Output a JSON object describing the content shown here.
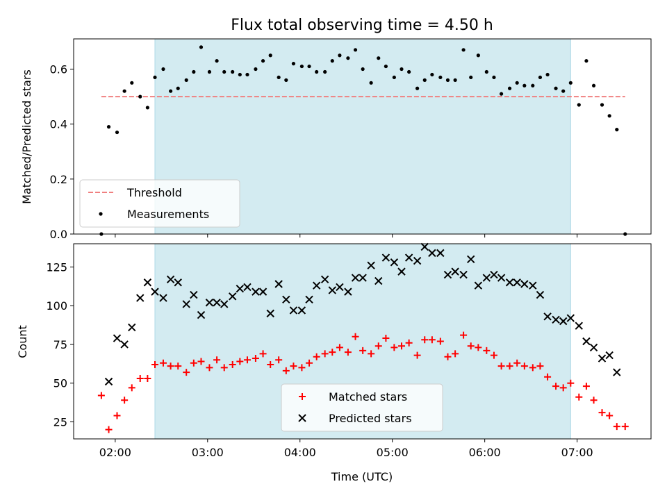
{
  "chart_data": {
    "type": "scatter",
    "title": "Flux total observing time = 4.50 h",
    "xlabel": "Time (UTC)",
    "x_ticks": [
      "02:00",
      "03:00",
      "04:00",
      "05:00",
      "06:00",
      "07:00"
    ],
    "xlim": [
      1.55,
      7.8
    ],
    "observing_window": {
      "start": 2.43,
      "end": 6.93,
      "color": "#d3ebf1"
    },
    "panels": [
      {
        "ylabel": "Matched/Predicted stars",
        "ylim": [
          0,
          0.71
        ],
        "y_ticks": [
          0,
          0.2,
          0.4,
          0.6
        ],
        "y_tick_labels": [
          "0.0",
          "0.2",
          "0.4",
          "0.6"
        ],
        "legend_position": "lower-left",
        "threshold": {
          "name": "Threshold",
          "value": 0.5,
          "x_range": [
            1.85,
            7.52
          ],
          "color": "#f08080"
        },
        "series": [
          {
            "name": "Measurements",
            "marker": "dot",
            "color": "#000000",
            "points": [
              [
                1.85,
                0.0
              ],
              [
                1.93,
                0.39
              ],
              [
                2.02,
                0.37
              ],
              [
                2.1,
                0.52
              ],
              [
                2.18,
                0.55
              ],
              [
                2.27,
                0.5
              ],
              [
                2.35,
                0.46
              ],
              [
                2.43,
                0.57
              ],
              [
                2.52,
                0.6
              ],
              [
                2.6,
                0.52
              ],
              [
                2.68,
                0.53
              ],
              [
                2.77,
                0.56
              ],
              [
                2.85,
                0.59
              ],
              [
                2.93,
                0.68
              ],
              [
                3.02,
                0.59
              ],
              [
                3.1,
                0.63
              ],
              [
                3.18,
                0.59
              ],
              [
                3.27,
                0.59
              ],
              [
                3.35,
                0.58
              ],
              [
                3.43,
                0.58
              ],
              [
                3.52,
                0.6
              ],
              [
                3.6,
                0.63
              ],
              [
                3.68,
                0.65
              ],
              [
                3.77,
                0.57
              ],
              [
                3.85,
                0.56
              ],
              [
                3.93,
                0.62
              ],
              [
                4.02,
                0.61
              ],
              [
                4.1,
                0.61
              ],
              [
                4.18,
                0.59
              ],
              [
                4.27,
                0.59
              ],
              [
                4.35,
                0.63
              ],
              [
                4.43,
                0.65
              ],
              [
                4.52,
                0.64
              ],
              [
                4.6,
                0.67
              ],
              [
                4.68,
                0.6
              ],
              [
                4.77,
                0.55
              ],
              [
                4.85,
                0.64
              ],
              [
                4.93,
                0.61
              ],
              [
                5.02,
                0.57
              ],
              [
                5.1,
                0.6
              ],
              [
                5.18,
                0.59
              ],
              [
                5.27,
                0.53
              ],
              [
                5.35,
                0.56
              ],
              [
                5.43,
                0.58
              ],
              [
                5.52,
                0.57
              ],
              [
                5.6,
                0.56
              ],
              [
                5.68,
                0.56
              ],
              [
                5.77,
                0.67
              ],
              [
                5.85,
                0.57
              ],
              [
                5.93,
                0.65
              ],
              [
                6.02,
                0.59
              ],
              [
                6.1,
                0.57
              ],
              [
                6.18,
                0.51
              ],
              [
                6.27,
                0.53
              ],
              [
                6.35,
                0.55
              ],
              [
                6.43,
                0.54
              ],
              [
                6.52,
                0.54
              ],
              [
                6.6,
                0.57
              ],
              [
                6.68,
                0.58
              ],
              [
                6.77,
                0.53
              ],
              [
                6.85,
                0.52
              ],
              [
                6.93,
                0.55
              ],
              [
                7.02,
                0.47
              ],
              [
                7.1,
                0.63
              ],
              [
                7.18,
                0.54
              ],
              [
                7.27,
                0.47
              ],
              [
                7.35,
                0.43
              ],
              [
                7.43,
                0.38
              ],
              [
                7.52,
                0.0
              ]
            ]
          }
        ]
      },
      {
        "ylabel": "Count",
        "ylim": [
          14,
          140
        ],
        "y_ticks": [
          25,
          50,
          75,
          100,
          125
        ],
        "y_tick_labels": [
          "25",
          "50",
          "75",
          "100",
          "125"
        ],
        "legend_position": "lower-center",
        "series": [
          {
            "name": "Matched stars",
            "marker": "plus",
            "color": "#ff0000",
            "points": [
              [
                1.85,
                42
              ],
              [
                1.93,
                20
              ],
              [
                2.02,
                29
              ],
              [
                2.1,
                39
              ],
              [
                2.18,
                47
              ],
              [
                2.27,
                53
              ],
              [
                2.35,
                53
              ],
              [
                2.43,
                62
              ],
              [
                2.52,
                63
              ],
              [
                2.6,
                61
              ],
              [
                2.68,
                61
              ],
              [
                2.77,
                57
              ],
              [
                2.85,
                63
              ],
              [
                2.93,
                64
              ],
              [
                3.02,
                60
              ],
              [
                3.1,
                65
              ],
              [
                3.18,
                60
              ],
              [
                3.27,
                62
              ],
              [
                3.35,
                64
              ],
              [
                3.43,
                65
              ],
              [
                3.52,
                66
              ],
              [
                3.6,
                69
              ],
              [
                3.68,
                62
              ],
              [
                3.77,
                65
              ],
              [
                3.85,
                58
              ],
              [
                3.93,
                61
              ],
              [
                4.02,
                60
              ],
              [
                4.1,
                63
              ],
              [
                4.18,
                67
              ],
              [
                4.27,
                69
              ],
              [
                4.35,
                70
              ],
              [
                4.43,
                73
              ],
              [
                4.52,
                70
              ],
              [
                4.6,
                80
              ],
              [
                4.68,
                71
              ],
              [
                4.77,
                69
              ],
              [
                4.85,
                74
              ],
              [
                4.93,
                79
              ],
              [
                5.02,
                73
              ],
              [
                5.1,
                74
              ],
              [
                5.18,
                76
              ],
              [
                5.27,
                68
              ],
              [
                5.35,
                78
              ],
              [
                5.43,
                78
              ],
              [
                5.52,
                77
              ],
              [
                5.6,
                67
              ],
              [
                5.68,
                69
              ],
              [
                5.77,
                81
              ],
              [
                5.85,
                74
              ],
              [
                5.93,
                73
              ],
              [
                6.02,
                71
              ],
              [
                6.1,
                68
              ],
              [
                6.18,
                61
              ],
              [
                6.27,
                61
              ],
              [
                6.35,
                63
              ],
              [
                6.43,
                61
              ],
              [
                6.52,
                60
              ],
              [
                6.6,
                61
              ],
              [
                6.68,
                54
              ],
              [
                6.77,
                48
              ],
              [
                6.85,
                47
              ],
              [
                6.93,
                50
              ],
              [
                7.02,
                41
              ],
              [
                7.1,
                48
              ],
              [
                7.18,
                39
              ],
              [
                7.27,
                31
              ],
              [
                7.35,
                29
              ],
              [
                7.43,
                22
              ],
              [
                7.52,
                22
              ]
            ]
          },
          {
            "name": "Predicted stars",
            "marker": "x",
            "color": "#000000",
            "points": [
              [
                1.93,
                51
              ],
              [
                2.02,
                79
              ],
              [
                2.1,
                75
              ],
              [
                2.18,
                86
              ],
              [
                2.27,
                105
              ],
              [
                2.35,
                115
              ],
              [
                2.43,
                109
              ],
              [
                2.52,
                105
              ],
              [
                2.6,
                117
              ],
              [
                2.68,
                115
              ],
              [
                2.77,
                101
              ],
              [
                2.85,
                107
              ],
              [
                2.93,
                94
              ],
              [
                3.02,
                102
              ],
              [
                3.1,
                102
              ],
              [
                3.18,
                101
              ],
              [
                3.27,
                106
              ],
              [
                3.35,
                111
              ],
              [
                3.43,
                112
              ],
              [
                3.52,
                109
              ],
              [
                3.6,
                109
              ],
              [
                3.68,
                95
              ],
              [
                3.77,
                114
              ],
              [
                3.85,
                104
              ],
              [
                3.93,
                97
              ],
              [
                4.02,
                97
              ],
              [
                4.1,
                104
              ],
              [
                4.18,
                113
              ],
              [
                4.27,
                117
              ],
              [
                4.35,
                110
              ],
              [
                4.43,
                112
              ],
              [
                4.52,
                109
              ],
              [
                4.6,
                118
              ],
              [
                4.68,
                118
              ],
              [
                4.77,
                126
              ],
              [
                4.85,
                116
              ],
              [
                4.93,
                131
              ],
              [
                5.02,
                128
              ],
              [
                5.1,
                122
              ],
              [
                5.18,
                131
              ],
              [
                5.27,
                129
              ],
              [
                5.35,
                138
              ],
              [
                5.43,
                134
              ],
              [
                5.52,
                134
              ],
              [
                5.6,
                120
              ],
              [
                5.68,
                122
              ],
              [
                5.77,
                120
              ],
              [
                5.85,
                130
              ],
              [
                5.93,
                113
              ],
              [
                6.02,
                118
              ],
              [
                6.1,
                120
              ],
              [
                6.18,
                118
              ],
              [
                6.27,
                115
              ],
              [
                6.35,
                115
              ],
              [
                6.43,
                114
              ],
              [
                6.52,
                113
              ],
              [
                6.6,
                107
              ],
              [
                6.68,
                93
              ],
              [
                6.77,
                91
              ],
              [
                6.85,
                90
              ],
              [
                6.93,
                92
              ],
              [
                7.02,
                87
              ],
              [
                7.1,
                77
              ],
              [
                7.18,
                73
              ],
              [
                7.27,
                66
              ],
              [
                7.35,
                68
              ],
              [
                7.43,
                57
              ]
            ]
          }
        ]
      }
    ]
  }
}
